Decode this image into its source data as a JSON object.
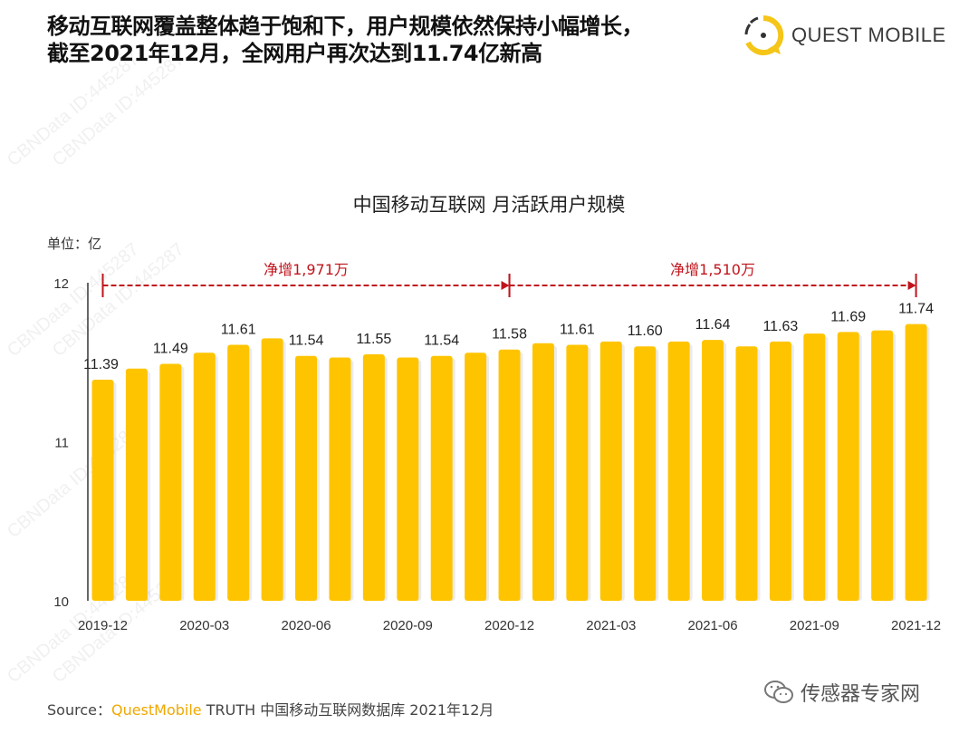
{
  "headline": [
    "移动互联网覆盖整体趋于饱和下，用户规模依然保持小幅增长，",
    "截至2021年12月，全网用户再次达到11.74亿新高"
  ],
  "logo": {
    "text": "QUEST MOBILE",
    "colors": {
      "ring": "#f5c518",
      "mark": "#333333"
    }
  },
  "watermark": "CBNData ID:445287",
  "unit_label": "单位：亿",
  "source": {
    "prefix": "Source：",
    "brand": "QuestMobile",
    "rest": " TRUTH 中国移动互联网数据库 2021年12月"
  },
  "wechat_account": "传感器专家网",
  "chart_data": {
    "type": "bar",
    "title": "中国移动互联网 月活跃用户规模",
    "ylabel": "单位：亿",
    "ylim": [
      10,
      12
    ],
    "yticks": [
      "10",
      "11",
      "12"
    ],
    "categories": [
      "2019-12",
      "2020-01",
      "2020-02",
      "2020-03",
      "2020-04",
      "2020-05",
      "2020-06",
      "2020-07",
      "2020-08",
      "2020-09",
      "2020-10",
      "2020-11",
      "2020-12",
      "2021-01",
      "2021-02",
      "2021-03",
      "2021-04",
      "2021-05",
      "2021-06",
      "2021-07",
      "2021-08",
      "2021-09",
      "2021-10",
      "2021-11",
      "2021-12"
    ],
    "xtick_labels": [
      "2019-12",
      "2020-03",
      "2020-06",
      "2020-09",
      "2020-12",
      "2021-03",
      "2021-06",
      "2021-09",
      "2021-12"
    ],
    "values": [
      11.39,
      11.46,
      11.49,
      11.56,
      11.61,
      11.65,
      11.54,
      11.53,
      11.55,
      11.53,
      11.54,
      11.56,
      11.58,
      11.62,
      11.61,
      11.63,
      11.6,
      11.63,
      11.64,
      11.6,
      11.63,
      11.68,
      11.69,
      11.7,
      11.74
    ],
    "data_labels": [
      "11.39",
      "",
      "11.49",
      "",
      "11.61",
      "",
      "11.54",
      "",
      "11.55",
      "",
      "11.54",
      "",
      "11.58",
      "",
      "11.61",
      "",
      "11.60",
      "",
      "11.64",
      "",
      "11.63",
      "",
      "11.69",
      "",
      "11.74"
    ],
    "annotations": [
      {
        "text": "净增1,971万",
        "from": "2019-12",
        "to": "2020-12"
      },
      {
        "text": "净增1,510万",
        "from": "2020-12",
        "to": "2021-12"
      }
    ],
    "bar_color": "#ffc400",
    "annotation_color": "#c0141c",
    "grid": false
  }
}
